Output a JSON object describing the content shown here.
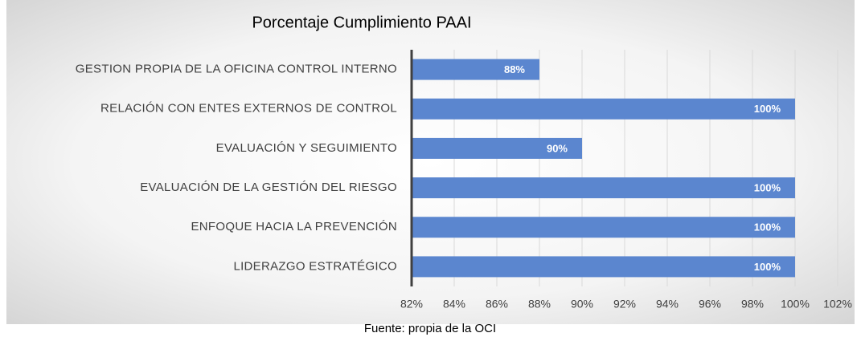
{
  "chart_data": {
    "type": "bar",
    "orientation": "horizontal",
    "title": "Porcentaje Cumplimiento PAAI",
    "categories": [
      "GESTION PROPIA DE LA OFICINA CONTROL INTERNO",
      "RELACIÓN CON ENTES EXTERNOS DE CONTROL",
      "EVALUACIÓN Y SEGUIMIENTO",
      "EVALUACIÓN DE LA GESTIÓN DEL RIESGO",
      "ENFOQUE HACIA LA PREVENCIÓN",
      "LIDERAZGO ESTRATÉGICO"
    ],
    "values": [
      88,
      100,
      90,
      100,
      100,
      100
    ],
    "value_labels": [
      "88%",
      "100%",
      "90%",
      "100%",
      "100%",
      "100%"
    ],
    "color": "#5b86cf",
    "xlim": [
      82,
      102
    ],
    "xticks": [
      {
        "value": 82,
        "label": "82%"
      },
      {
        "value": 84,
        "label": "84%"
      },
      {
        "value": 86,
        "label": "86%"
      },
      {
        "value": 88,
        "label": "88%"
      },
      {
        "value": 90,
        "label": "90%"
      },
      {
        "value": 92,
        "label": "92%"
      },
      {
        "value": 94,
        "label": "94%"
      },
      {
        "value": 96,
        "label": "96%"
      },
      {
        "value": 98,
        "label": "98%"
      },
      {
        "value": 100,
        "label": "100%"
      },
      {
        "value": 102,
        "label": "102%"
      }
    ],
    "grid": true,
    "source": "Fuente: propia de la OCI"
  }
}
